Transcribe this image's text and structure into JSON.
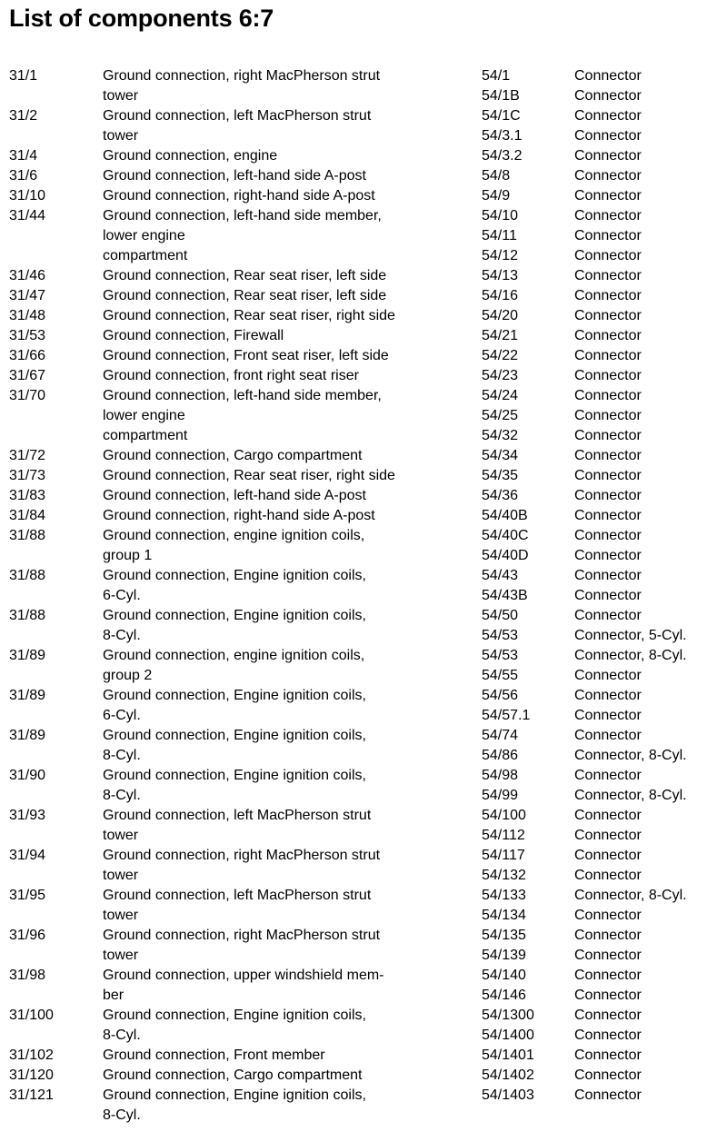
{
  "title": "List of components 6:7",
  "left": [
    {
      "code": "31/1",
      "desc": [
        "Ground connection, right MacPherson strut",
        "tower"
      ]
    },
    {
      "code": "31/2",
      "desc": [
        "Ground connection, left MacPherson strut",
        "tower"
      ]
    },
    {
      "code": "31/4",
      "desc": [
        "Ground connection, engine"
      ]
    },
    {
      "code": "31/6",
      "desc": [
        "Ground connection, left-hand side A-post"
      ]
    },
    {
      "code": "31/10",
      "desc": [
        "Ground connection, right-hand side A-post"
      ]
    },
    {
      "code": "31/44",
      "desc": [
        "Ground connection, left-hand side member,",
        "lower engine",
        "compartment"
      ]
    },
    {
      "code": "31/46",
      "desc": [
        "Ground connection, Rear seat riser, left side"
      ]
    },
    {
      "code": "31/47",
      "desc": [
        "Ground connection, Rear seat riser, left side"
      ]
    },
    {
      "code": "31/48",
      "desc": [
        "Ground connection, Rear seat riser, right side"
      ]
    },
    {
      "code": "31/53",
      "desc": [
        "Ground connection, Firewall"
      ]
    },
    {
      "code": "31/66",
      "desc": [
        "Ground connection, Front seat riser, left side"
      ]
    },
    {
      "code": "31/67",
      "desc": [
        "Ground connection, front right seat riser"
      ]
    },
    {
      "code": "31/70",
      "desc": [
        "Ground connection, left-hand side member,",
        "lower engine",
        "compartment"
      ]
    },
    {
      "code": "31/72",
      "desc": [
        "Ground connection, Cargo compartment"
      ]
    },
    {
      "code": "31/73",
      "desc": [
        "Ground connection, Rear seat riser, right side"
      ]
    },
    {
      "code": "31/83",
      "desc": [
        "Ground connection, left-hand side A-post"
      ]
    },
    {
      "code": "31/84",
      "desc": [
        "Ground connection, right-hand side A-post"
      ]
    },
    {
      "code": "31/88",
      "desc": [
        "Ground connection, engine ignition coils,",
        "group 1"
      ]
    },
    {
      "code": "31/88",
      "desc": [
        "Ground connection, Engine ignition coils,",
        "6-Cyl."
      ]
    },
    {
      "code": "31/88",
      "desc": [
        "Ground connection, Engine ignition coils,",
        "8-Cyl."
      ]
    },
    {
      "code": "31/89",
      "desc": [
        "Ground connection, engine ignition coils,",
        "group 2"
      ]
    },
    {
      "code": "31/89",
      "desc": [
        "Ground connection, Engine ignition coils,",
        "6-Cyl."
      ]
    },
    {
      "code": "31/89",
      "desc": [
        "Ground connection, Engine ignition coils,",
        "8-Cyl."
      ]
    },
    {
      "code": "31/90",
      "desc": [
        "Ground connection, Engine ignition coils,",
        "8-Cyl."
      ]
    },
    {
      "code": "31/93",
      "desc": [
        "Ground connection, left MacPherson strut",
        "tower"
      ]
    },
    {
      "code": "31/94",
      "desc": [
        "Ground connection, right MacPherson strut",
        "tower"
      ]
    },
    {
      "code": "31/95",
      "desc": [
        "Ground connection, left MacPherson strut",
        "tower"
      ]
    },
    {
      "code": "31/96",
      "desc": [
        "Ground connection, right MacPherson strut",
        "tower"
      ]
    },
    {
      "code": "31/98",
      "desc": [
        "Ground connection, upper windshield mem-",
        "ber"
      ]
    },
    {
      "code": "31/100",
      "desc": [
        "Ground connection, Engine ignition coils,",
        "8-Cyl."
      ]
    },
    {
      "code": "31/102",
      "desc": [
        "Ground connection, Front member"
      ]
    },
    {
      "code": "31/120",
      "desc": [
        "Ground connection, Cargo compartment"
      ]
    },
    {
      "code": "31/121",
      "desc": [
        "Ground connection, Engine ignition coils,",
        "8-Cyl."
      ]
    }
  ],
  "right": [
    {
      "code": "54/1",
      "desc": "Connector"
    },
    {
      "code": "54/1B",
      "desc": "Connector"
    },
    {
      "code": "54/1C",
      "desc": "Connector"
    },
    {
      "code": "54/3.1",
      "desc": "Connector"
    },
    {
      "code": "54/3.2",
      "desc": "Connector"
    },
    {
      "code": "54/8",
      "desc": "Connector"
    },
    {
      "code": "54/9",
      "desc": "Connector"
    },
    {
      "code": "54/10",
      "desc": "Connector"
    },
    {
      "code": "54/11",
      "desc": "Connector"
    },
    {
      "code": "54/12",
      "desc": "Connector"
    },
    {
      "code": "54/13",
      "desc": "Connector"
    },
    {
      "code": "54/16",
      "desc": "Connector"
    },
    {
      "code": "54/20",
      "desc": "Connector"
    },
    {
      "code": "54/21",
      "desc": "Connector"
    },
    {
      "code": "54/22",
      "desc": "Connector"
    },
    {
      "code": "54/23",
      "desc": "Connector"
    },
    {
      "code": "54/24",
      "desc": "Connector"
    },
    {
      "code": "54/25",
      "desc": "Connector"
    },
    {
      "code": "54/32",
      "desc": "Connector"
    },
    {
      "code": "54/34",
      "desc": "Connector"
    },
    {
      "code": "54/35",
      "desc": "Connector"
    },
    {
      "code": "54/36",
      "desc": "Connector"
    },
    {
      "code": "54/40B",
      "desc": "Connector"
    },
    {
      "code": "54/40C",
      "desc": "Connector"
    },
    {
      "code": "54/40D",
      "desc": "Connector"
    },
    {
      "code": "54/43",
      "desc": "Connector"
    },
    {
      "code": "54/43B",
      "desc": "Connector"
    },
    {
      "code": "54/50",
      "desc": "Connector"
    },
    {
      "code": "54/53",
      "desc": "Connector, 5-Cyl."
    },
    {
      "code": "54/53",
      "desc": "Connector, 8-Cyl."
    },
    {
      "code": "54/55",
      "desc": "Connector"
    },
    {
      "code": "54/56",
      "desc": "Connector"
    },
    {
      "code": "54/57.1",
      "desc": "Connector"
    },
    {
      "code": "54/74",
      "desc": "Connector"
    },
    {
      "code": "54/86",
      "desc": "Connector, 8-Cyl."
    },
    {
      "code": "54/98",
      "desc": "Connector"
    },
    {
      "code": "54/99",
      "desc": "Connector, 8-Cyl."
    },
    {
      "code": "54/100",
      "desc": "Connector"
    },
    {
      "code": "54/112",
      "desc": "Connector"
    },
    {
      "code": "54/117",
      "desc": "Connector"
    },
    {
      "code": "54/132",
      "desc": "Connector"
    },
    {
      "code": "54/133",
      "desc": "Connector, 8-Cyl."
    },
    {
      "code": "54/134",
      "desc": "Connector"
    },
    {
      "code": "54/135",
      "desc": "Connector"
    },
    {
      "code": "54/139",
      "desc": "Connector"
    },
    {
      "code": "54/140",
      "desc": "Connector"
    },
    {
      "code": "54/146",
      "desc": "Connector"
    },
    {
      "code": "54/1300",
      "desc": "Connector"
    },
    {
      "code": "54/1400",
      "desc": "Connector"
    },
    {
      "code": "54/1401",
      "desc": "Connector"
    },
    {
      "code": "54/1402",
      "desc": "Connector"
    },
    {
      "code": "54/1403",
      "desc": "Connector"
    }
  ]
}
